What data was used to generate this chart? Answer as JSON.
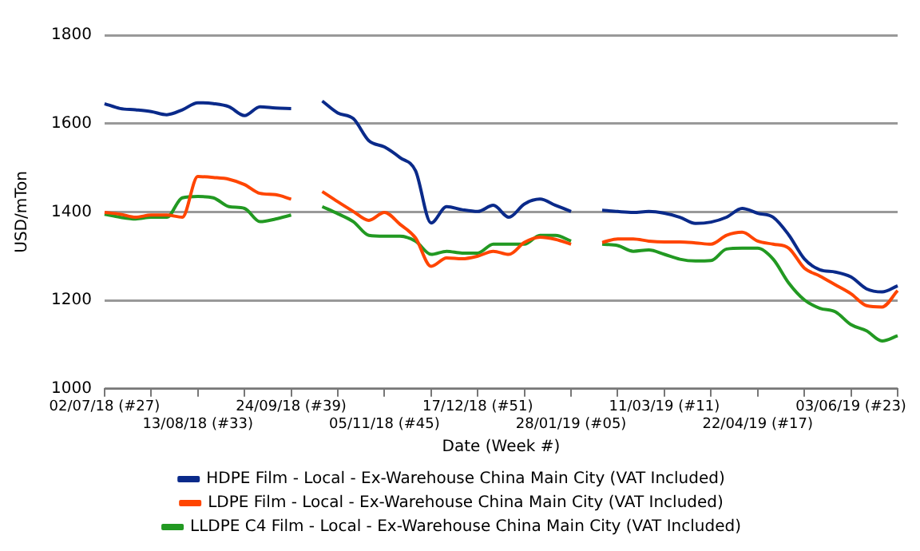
{
  "chart_data": {
    "type": "line",
    "xlabel": "Date (Week #)",
    "ylabel": "USD/mTon",
    "categories": [
      "02/07/18 (#27)",
      null,
      null,
      null,
      null,
      null,
      "13/08/18 (#33)",
      null,
      null,
      null,
      null,
      null,
      "24/09/18 (#39)",
      null,
      null,
      null,
      null,
      null,
      "05/11/18 (#45)",
      null,
      null,
      null,
      null,
      null,
      "17/12/18 (#51)",
      null,
      null,
      null,
      null,
      null,
      "28/01/19 (#05)",
      null,
      null,
      null,
      null,
      null,
      "11/03/19 (#11)",
      null,
      null,
      null,
      null,
      null,
      "22/04/19 (#17)",
      null,
      null,
      null,
      null,
      null,
      "03/06/19 (#23)",
      null,
      null,
      null
    ],
    "series": [
      {
        "name": "HDPE Film - Local - Ex-Warehouse China Main City (VAT Included)",
        "color": "#0a2a8a",
        "values": [
          1645,
          1634,
          1631,
          1627,
          1620,
          1631,
          1647,
          1645,
          1638,
          1618,
          1638,
          1635,
          1634,
          null,
          1651,
          1624,
          1611,
          1561,
          1547,
          1523,
          1493,
          1375,
          1412,
          1405,
          1401,
          1415,
          1388,
          1418,
          1429,
          1415,
          1401,
          null,
          1404,
          1401,
          1399,
          1401,
          1397,
          1388,
          1374,
          1377,
          1388,
          1408,
          1397,
          1388,
          1348,
          1294,
          1269,
          1264,
          1253,
          1226,
          1219,
          1233
        ]
      },
      {
        "name": "LDPE Film - Local - Ex-Warehouse China Main City (VAT Included)",
        "color": "#ff4500",
        "values": [
          1399,
          1395,
          1388,
          1393,
          1393,
          1388,
          1480,
          1478,
          1474,
          1462,
          1442,
          1439,
          1429,
          null,
          1446,
          1423,
          1401,
          1381,
          1399,
          1372,
          1341,
          1277,
          1296,
          1294,
          1300,
          1311,
          1304,
          1331,
          1343,
          1338,
          1327,
          null,
          1331,
          1339,
          1339,
          1334,
          1332,
          1332,
          1330,
          1327,
          1347,
          1354,
          1334,
          1327,
          1318,
          1273,
          1255,
          1235,
          1215,
          1188,
          1185,
          1222
        ]
      },
      {
        "name": "LLDPE C4 Film - Local - Ex-Warehouse China Main City (VAT Included)",
        "color": "#229922",
        "values": [
          1395,
          1388,
          1384,
          1388,
          1388,
          1432,
          1435,
          1432,
          1412,
          1408,
          1378,
          1384,
          1393,
          null,
          1412,
          1396,
          1378,
          1347,
          1345,
          1345,
          1334,
          1304,
          1311,
          1307,
          1307,
          1327,
          1327,
          1327,
          1347,
          1347,
          1334,
          null,
          1327,
          1324,
          1311,
          1314,
          1304,
          1293,
          1289,
          1290,
          1316,
          1318,
          1318,
          1293,
          1239,
          1201,
          1182,
          1174,
          1145,
          1131,
          1108,
          1120
        ]
      }
    ],
    "ylim": [
      1000,
      1800
    ],
    "yticks": [
      1000,
      1200,
      1400,
      1600,
      1800
    ],
    "grid": "y",
    "legend": "bottom",
    "marker": "none",
    "line_style": "solid"
  }
}
